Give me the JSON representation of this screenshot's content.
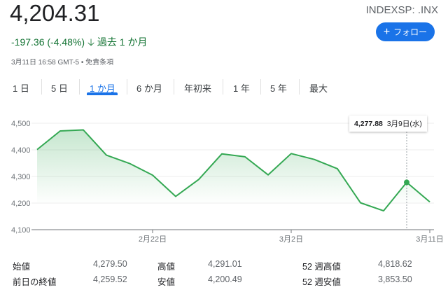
{
  "header": {
    "price": "4,204.31",
    "ticker": "INDEXSP: .INX",
    "follow_label": "フォロー",
    "follow_icon": "plus-icon",
    "change": "-197.36 (-4.48%)",
    "change_icon": "arrow-down-icon",
    "period": "過去 1 か月",
    "meta": "3月11日 16:58 GMT-5 • 免責条項",
    "accent": "#1a73e8",
    "change_color": "#137333"
  },
  "tabs": [
    {
      "label": "1 日"
    },
    {
      "label": "5 日"
    },
    {
      "label": "1 か月",
      "active": true
    },
    {
      "label": "6 か月"
    },
    {
      "label": "年初来"
    },
    {
      "label": "1 年"
    },
    {
      "label": "5 年"
    },
    {
      "label": "最大"
    }
  ],
  "chart_data": {
    "type": "area",
    "ylim": [
      4100,
      4500
    ],
    "yticks": [
      "4,100",
      "4,200",
      "4,300",
      "4,400",
      "4,500"
    ],
    "ytick_values": [
      4100,
      4200,
      4300,
      4400,
      4500
    ],
    "xticks": [
      {
        "label": "2月22日",
        "index": 5
      },
      {
        "label": "3月2日",
        "index": 11
      },
      {
        "label": "3月11日",
        "index": 17
      }
    ],
    "values": [
      4401,
      4471,
      4475,
      4380,
      4349,
      4305,
      4225,
      4289,
      4385,
      4374,
      4306,
      4386,
      4364,
      4329,
      4201,
      4171,
      4277.88,
      4204.31
    ],
    "line_color": "#34a853",
    "grid": true,
    "tooltip": {
      "value": "4,277.88",
      "date": "3月9日(水)",
      "index": 16
    }
  },
  "stats": [
    {
      "label": "始値",
      "value": "4,279.50"
    },
    {
      "label": "高値",
      "value": "4,291.01"
    },
    {
      "label": "52 週高値",
      "value": "4,818.62"
    },
    {
      "label": "前日の終値",
      "value": "4,259.52"
    },
    {
      "label": "安値",
      "value": "4,200.49"
    },
    {
      "label": "52 週安値",
      "value": "3,853.50"
    }
  ]
}
